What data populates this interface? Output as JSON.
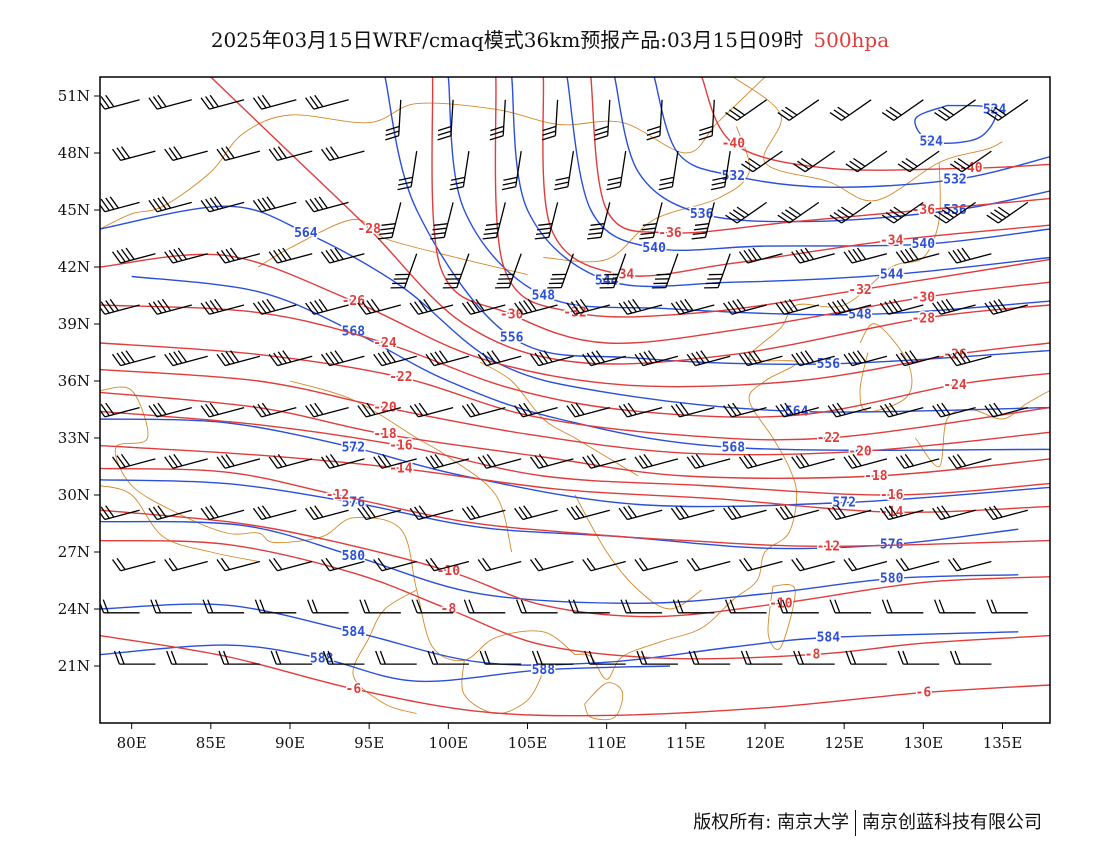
{
  "title": {
    "main": "2025年03月15日WRF/cmaq模式36km预报产品:03月15日09时",
    "level": "500hpa"
  },
  "axes": {
    "lon_labels": [
      "80E",
      "85E",
      "90E",
      "95E",
      "100E",
      "105E",
      "110E",
      "115E",
      "120E",
      "125E",
      "130E",
      "135E"
    ],
    "lat_labels": [
      "51N",
      "48N",
      "45N",
      "42N",
      "39N",
      "36N",
      "33N",
      "30N",
      "27N",
      "24N",
      "21N"
    ]
  },
  "map_extent": {
    "lon": [
      78,
      138
    ],
    "lat": [
      18,
      52
    ]
  },
  "colors": {
    "temperature": "#e03c3c",
    "height": "#2a4fd8",
    "border": "#d4892b",
    "barb": "#000000"
  },
  "height_contours": [
    {
      "label": "524",
      "points": [
        [
          131.5,
          50.5
        ],
        [
          129.5,
          49.8
        ],
        [
          130.5,
          48.6
        ],
        [
          133.5,
          48.8
        ],
        [
          134.5,
          50.3
        ],
        [
          131.5,
          50.5
        ]
      ]
    },
    {
      "label": "532",
      "points": [
        [
          113,
          52
        ],
        [
          114.5,
          48
        ],
        [
          118,
          46.8
        ],
        [
          124,
          46.2
        ],
        [
          132,
          46.6
        ],
        [
          138,
          47.8
        ]
      ]
    },
    {
      "label": "536",
      "points": [
        [
          110.5,
          52
        ],
        [
          112,
          47
        ],
        [
          116,
          44.8
        ],
        [
          123,
          44.4
        ],
        [
          132,
          45
        ],
        [
          138,
          46
        ]
      ]
    },
    {
      "label": "540",
      "points": [
        [
          107.5,
          52
        ],
        [
          109,
          45
        ],
        [
          113,
          43
        ],
        [
          120,
          43.1
        ],
        [
          130,
          43.2
        ],
        [
          138,
          44
        ]
      ]
    },
    {
      "label": "544",
      "points": [
        [
          104,
          52
        ],
        [
          105,
          45
        ],
        [
          110,
          41.3
        ],
        [
          118,
          41.2
        ],
        [
          128,
          41.6
        ],
        [
          138,
          42.5
        ]
      ]
    },
    {
      "label": "548",
      "points": [
        [
          100,
          52
        ],
        [
          101,
          45
        ],
        [
          106,
          40.5
        ],
        [
          114,
          39.8
        ],
        [
          126,
          39.5
        ],
        [
          138,
          40.2
        ]
      ]
    },
    {
      "label": "556",
      "points": [
        [
          96,
          52
        ],
        [
          98,
          45
        ],
        [
          104,
          38.3
        ],
        [
          112,
          37.2
        ],
        [
          124,
          36.9
        ],
        [
          138,
          37.6
        ]
      ]
    },
    {
      "label": "564",
      "points": [
        [
          78,
          44
        ],
        [
          86,
          45.2
        ],
        [
          91,
          43.8
        ],
        [
          97,
          41
        ],
        [
          103,
          37
        ],
        [
          110,
          35.4
        ],
        [
          122,
          34.4
        ],
        [
          138,
          34.6
        ]
      ]
    },
    {
      "label": "568",
      "points": [
        [
          80,
          41.5
        ],
        [
          88,
          40.7
        ],
        [
          94,
          38.6
        ],
        [
          100,
          36
        ],
        [
          107,
          34
        ],
        [
          118,
          32.5
        ],
        [
          138,
          32.4
        ]
      ]
    },
    {
      "label": "572",
      "points": [
        [
          78,
          34
        ],
        [
          86,
          33.8
        ],
        [
          94,
          32.5
        ],
        [
          101,
          31
        ],
        [
          112,
          29.5
        ],
        [
          125,
          29.6
        ],
        [
          138,
          30.4
        ]
      ]
    },
    {
      "label": "576",
      "points": [
        [
          78,
          30.8
        ],
        [
          86,
          30.6
        ],
        [
          94,
          29.6
        ],
        [
          102,
          28.3
        ],
        [
          111,
          27.8
        ],
        [
          120,
          27.2
        ],
        [
          128,
          27.4
        ],
        [
          136,
          28.2
        ]
      ]
    },
    {
      "label": "580",
      "points": [
        [
          78,
          28.6
        ],
        [
          87,
          28.4
        ],
        [
          94,
          26.8
        ],
        [
          102,
          24.8
        ],
        [
          112,
          24.3
        ],
        [
          120,
          24.8
        ],
        [
          128,
          25.6
        ],
        [
          136,
          25.8
        ]
      ]
    },
    {
      "label": "584",
      "points": [
        [
          78,
          24
        ],
        [
          86,
          24.2
        ],
        [
          94,
          22.8
        ],
        [
          102,
          21.2
        ],
        [
          110,
          21.2
        ],
        [
          118,
          22
        ],
        [
          124,
          22.5
        ],
        [
          136,
          22.8
        ]
      ]
    },
    {
      "label": "588",
      "points": [
        [
          78,
          21.6
        ],
        [
          86,
          22.1
        ],
        [
          92,
          21.4
        ],
        [
          98,
          20.2
        ],
        [
          106,
          20.8
        ],
        [
          114,
          21
        ]
      ]
    }
  ],
  "temperature_contours": [
    {
      "label": "-40",
      "points": [
        [
          116,
          52
        ],
        [
          118,
          48.5
        ],
        [
          124,
          47.2
        ],
        [
          133,
          47.2
        ],
        [
          138,
          47.4
        ]
      ]
    },
    {
      "label": "-36",
      "points": [
        [
          109,
          52
        ],
        [
          110,
          45
        ],
        [
          114,
          43.8
        ],
        [
          122,
          44.4
        ],
        [
          130,
          45
        ],
        [
          138,
          45.6
        ]
      ]
    },
    {
      "label": "-34",
      "points": [
        [
          106,
          52
        ],
        [
          106.5,
          44
        ],
        [
          111,
          41.6
        ],
        [
          118,
          42.2
        ],
        [
          128,
          43.4
        ],
        [
          138,
          44.2
        ]
      ]
    },
    {
      "label": "-32",
      "points": [
        [
          103,
          52
        ],
        [
          103.5,
          42
        ],
        [
          108,
          39.6
        ],
        [
          116,
          39.6
        ],
        [
          126,
          40.8
        ],
        [
          138,
          42.4
        ]
      ]
    },
    {
      "label": "-30",
      "points": [
        [
          99,
          52
        ],
        [
          99.5,
          42
        ],
        [
          104,
          39.5
        ],
        [
          110,
          38
        ],
        [
          119,
          38.8
        ],
        [
          130,
          40.4
        ],
        [
          138,
          41.2
        ]
      ]
    },
    {
      "label": "-28",
      "points": [
        [
          85,
          52
        ],
        [
          90,
          48
        ],
        [
          95,
          44
        ],
        [
          101,
          39
        ],
        [
          108,
          37
        ],
        [
          118,
          37.4
        ],
        [
          130,
          39.3
        ],
        [
          138,
          40
        ]
      ]
    },
    {
      "label": "-26",
      "points": [
        [
          78,
          42
        ],
        [
          86,
          42.6
        ],
        [
          94,
          40.2
        ],
        [
          102,
          37.2
        ],
        [
          111,
          35.8
        ],
        [
          122,
          36
        ],
        [
          132,
          37.4
        ],
        [
          138,
          38
        ]
      ]
    },
    {
      "label": "-24",
      "points": [
        [
          78,
          40
        ],
        [
          88,
          39.6
        ],
        [
          96,
          38
        ],
        [
          104,
          35.6
        ],
        [
          112,
          34.4
        ],
        [
          122,
          34.2
        ],
        [
          132,
          35.8
        ],
        [
          138,
          36.4
        ]
      ]
    },
    {
      "label": "-22",
      "points": [
        [
          78,
          38
        ],
        [
          88,
          37.4
        ],
        [
          97,
          36.2
        ],
        [
          105,
          34.2
        ],
        [
          114,
          33.2
        ],
        [
          124,
          33
        ],
        [
          138,
          34.6
        ]
      ]
    },
    {
      "label": "-20",
      "points": [
        [
          78,
          36.6
        ],
        [
          88,
          36
        ],
        [
          96,
          34.6
        ],
        [
          105,
          33.2
        ],
        [
          115,
          32.2
        ],
        [
          126,
          32.3
        ],
        [
          138,
          33.3
        ]
      ]
    },
    {
      "label": "-18",
      "points": [
        [
          78,
          35.4
        ],
        [
          88,
          34.6
        ],
        [
          96,
          33.2
        ],
        [
          106,
          32
        ],
        [
          115,
          31
        ],
        [
          127,
          31
        ],
        [
          138,
          31.9
        ]
      ]
    },
    {
      "label": "-16",
      "points": [
        [
          78,
          34.4
        ],
        [
          88,
          33.7
        ],
        [
          97,
          32.6
        ],
        [
          106,
          31
        ],
        [
          116,
          30.5
        ],
        [
          128,
          30
        ],
        [
          138,
          30.6
        ]
      ]
    },
    {
      "label": "-14",
      "points": [
        [
          78,
          32.6
        ],
        [
          88,
          32.1
        ],
        [
          97,
          31.4
        ],
        [
          107,
          30.3
        ],
        [
          117,
          29.8
        ],
        [
          128,
          29.1
        ],
        [
          138,
          29.4
        ]
      ]
    },
    {
      "label": "-12",
      "points": [
        [
          78,
          31.4
        ],
        [
          86,
          31.2
        ],
        [
          93,
          30
        ],
        [
          101,
          28.6
        ],
        [
          108,
          28
        ],
        [
          115,
          27.6
        ],
        [
          124,
          27.3
        ],
        [
          138,
          27.6
        ]
      ]
    },
    {
      "label": "-10",
      "points": [
        [
          78,
          29.2
        ],
        [
          86,
          28.6
        ],
        [
          92,
          27.7
        ],
        [
          100,
          26
        ],
        [
          106,
          24.2
        ],
        [
          113,
          23.6
        ],
        [
          121,
          24.3
        ],
        [
          130,
          25.4
        ],
        [
          138,
          25.7
        ]
      ]
    },
    {
      "label": "-8",
      "points": [
        [
          78,
          27.6
        ],
        [
          86,
          27.4
        ],
        [
          94,
          25.9
        ],
        [
          100,
          24
        ],
        [
          106,
          22.1
        ],
        [
          114,
          21.4
        ],
        [
          123,
          21.6
        ],
        [
          130,
          22.2
        ],
        [
          138,
          22.6
        ]
      ]
    },
    {
      "label": "-6",
      "points": [
        [
          78,
          22.6
        ],
        [
          86,
          21.5
        ],
        [
          94,
          19.8
        ],
        [
          102,
          18.6
        ],
        [
          110,
          18.4
        ],
        [
          120,
          18.8
        ],
        [
          130,
          19.6
        ],
        [
          138,
          20
        ]
      ]
    }
  ]
}
